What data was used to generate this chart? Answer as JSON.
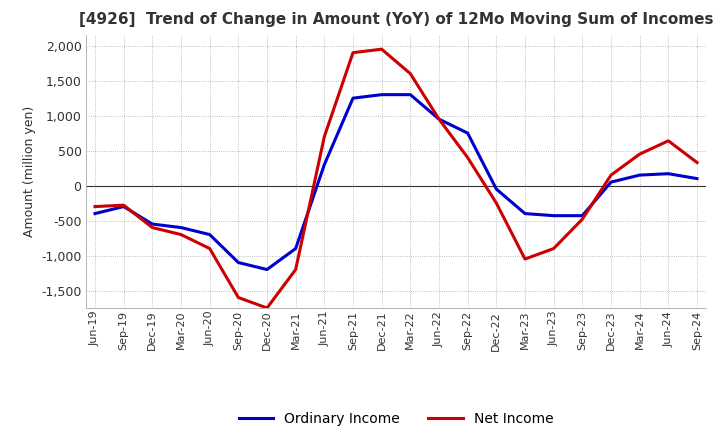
{
  "title": "[4926]  Trend of Change in Amount (YoY) of 12Mo Moving Sum of Incomes",
  "ylabel": "Amount (million yen)",
  "background_color": "#ffffff",
  "grid_color": "#aaaaaa",
  "x_labels": [
    "Jun-19",
    "Sep-19",
    "Dec-19",
    "Mar-20",
    "Jun-20",
    "Sep-20",
    "Dec-20",
    "Mar-21",
    "Jun-21",
    "Sep-21",
    "Dec-21",
    "Mar-22",
    "Jun-22",
    "Sep-22",
    "Dec-22",
    "Mar-23",
    "Jun-23",
    "Sep-23",
    "Dec-23",
    "Mar-24",
    "Jun-24",
    "Sep-24"
  ],
  "ordinary_income": [
    -400,
    -300,
    -550,
    -600,
    -700,
    -1100,
    -1200,
    -900,
    300,
    1250,
    1300,
    1300,
    950,
    750,
    -50,
    -400,
    -430,
    -430,
    50,
    150,
    170,
    100
  ],
  "net_income": [
    -300,
    -280,
    -600,
    -700,
    -900,
    -1600,
    -1750,
    -1200,
    700,
    1900,
    1950,
    1600,
    950,
    400,
    -250,
    -1050,
    -900,
    -480,
    150,
    450,
    640,
    330
  ],
  "ylim": [
    -1750,
    2150
  ],
  "yticks": [
    -1500,
    -1000,
    -500,
    0,
    500,
    1000,
    1500,
    2000
  ],
  "ordinary_color": "#0000cc",
  "net_color": "#cc0000",
  "line_width": 2.2
}
